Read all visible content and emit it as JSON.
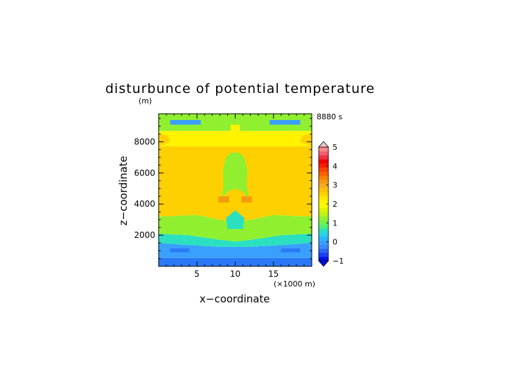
{
  "chart_data": {
    "type": "heatmap",
    "title": "disturbunce of potential temperature",
    "yunit": "(m)",
    "time_label": "8880 s",
    "xlabel": "x−coordinate",
    "ylabel": "z−coordinate",
    "xunit": "(×1000 m)",
    "xlim": [
      0,
      20
    ],
    "ylim": [
      0,
      9800
    ],
    "xticks": [
      5,
      10,
      15
    ],
    "yticks": [
      2000,
      4000,
      6000,
      8000
    ],
    "grid": false,
    "colorbar": {
      "placement": "right",
      "min": -1,
      "max": 5,
      "step": 0.25,
      "tick_values": [
        5,
        4,
        3,
        2,
        1,
        0,
        -1
      ],
      "tick_labels": [
        "5",
        "4",
        "3",
        "2",
        "1",
        "0",
        "−1"
      ],
      "colors": [
        "#0010e8",
        "#1a3ef5",
        "#2a66fb",
        "#3a8cff",
        "#3aa0ff",
        "#2ab4ff",
        "#2ad0e8",
        "#2ae0c0",
        "#50f070",
        "#70f050",
        "#90f030",
        "#b8f020",
        "#e0f000",
        "#f8f800",
        "#fff300",
        "#ffe800",
        "#ffd000",
        "#ffc000",
        "#f8ac20",
        "#f59b10",
        "#f88000",
        "#f86000",
        "#f84000",
        "#f82000",
        "#f00000",
        "#f03040",
        "#f46070",
        "#f88888"
      ]
    },
    "regions": [
      {
        "value": -0.6,
        "color": "#2a7af8",
        "desc": "lowest layer",
        "polygon": [
          [
            0,
            0
          ],
          [
            20,
            0
          ],
          [
            20,
            550
          ],
          [
            0,
            550
          ]
        ]
      },
      {
        "value": -0.3,
        "color": "#3aa0ff",
        "desc": "lower stable layer",
        "polygon": [
          [
            0,
            550
          ],
          [
            20,
            550
          ],
          [
            20,
            1500
          ],
          [
            17,
            1400
          ],
          [
            12,
            1250
          ],
          [
            10,
            1250
          ],
          [
            8,
            1250
          ],
          [
            3,
            1400
          ],
          [
            0,
            1500
          ]
        ]
      },
      {
        "value": 0.6,
        "color": "#2ae0c0",
        "desc": "transition layer",
        "polygon": [
          [
            0,
            1500
          ],
          [
            3,
            1400
          ],
          [
            8,
            1250
          ],
          [
            10,
            1250
          ],
          [
            12,
            1250
          ],
          [
            17,
            1400
          ],
          [
            20,
            1500
          ],
          [
            20,
            2100
          ],
          [
            16,
            2000
          ],
          [
            12,
            1700
          ],
          [
            10,
            1600
          ],
          [
            8,
            1700
          ],
          [
            4,
            2000
          ],
          [
            0,
            2100
          ]
        ]
      },
      {
        "value": 1.3,
        "color": "#90f030",
        "desc": "lower mixed layer",
        "polygon": [
          [
            0,
            2100
          ],
          [
            4,
            2000
          ],
          [
            8,
            1700
          ],
          [
            10,
            1600
          ],
          [
            12,
            1700
          ],
          [
            16,
            2000
          ],
          [
            20,
            2100
          ],
          [
            20,
            3200
          ],
          [
            15,
            3300
          ],
          [
            12,
            3000
          ],
          [
            10,
            2800
          ],
          [
            8,
            3000
          ],
          [
            5,
            3300
          ],
          [
            0,
            3200
          ]
        ]
      },
      {
        "value": 2.2,
        "color": "#ffd000",
        "desc": "main warm layer",
        "polygon": [
          [
            0,
            3200
          ],
          [
            5,
            3300
          ],
          [
            8,
            3000
          ],
          [
            10,
            2800
          ],
          [
            12,
            3000
          ],
          [
            15,
            3300
          ],
          [
            20,
            3200
          ],
          [
            20,
            7700
          ],
          [
            0,
            7700
          ]
        ]
      },
      {
        "value": 1.4,
        "color": "#90f030",
        "desc": "central plume",
        "polygon": [
          [
            8.2,
            4300
          ],
          [
            8.5,
            5200
          ],
          [
            8.4,
            6200
          ],
          [
            8.8,
            7000
          ],
          [
            9.5,
            7300
          ],
          [
            10.5,
            7300
          ],
          [
            11.2,
            7000
          ],
          [
            11.6,
            6200
          ],
          [
            11.5,
            5200
          ],
          [
            11.8,
            4300
          ],
          [
            11,
            4800
          ],
          [
            10,
            5000
          ],
          [
            9,
            4800
          ]
        ]
      },
      {
        "value": 1.8,
        "color": "#fff300",
        "desc": "upper layer",
        "polygon": [
          [
            0,
            7700
          ],
          [
            20,
            7700
          ],
          [
            20,
            8700
          ],
          [
            0,
            8700
          ]
        ]
      },
      {
        "value": 1.3,
        "color": "#90f030",
        "desc": "top layer",
        "polygon": [
          [
            0,
            8700
          ],
          [
            20,
            8700
          ],
          [
            20,
            9800
          ],
          [
            0,
            9800
          ]
        ]
      },
      {
        "value": 2.5,
        "color": "#ffd000",
        "desc": "left warm pocket",
        "polygon": [
          [
            0,
            7700
          ],
          [
            1.5,
            8000
          ],
          [
            1.2,
            8400
          ],
          [
            0,
            8500
          ]
        ]
      },
      {
        "value": 2.5,
        "color": "#ffd000",
        "desc": "right warm pocket",
        "polygon": [
          [
            20,
            7700
          ],
          [
            18.5,
            8000
          ],
          [
            18.8,
            8400
          ],
          [
            20,
            8500
          ]
        ]
      },
      {
        "value": -0.5,
        "color": "#3aa0ff",
        "desc": "left top cold cell",
        "polygon": [
          [
            1.5,
            9100
          ],
          [
            5.5,
            9100
          ],
          [
            5.5,
            9400
          ],
          [
            1.5,
            9400
          ]
        ]
      },
      {
        "value": -0.5,
        "color": "#3aa0ff",
        "desc": "right top cold cell",
        "polygon": [
          [
            14.5,
            9100
          ],
          [
            18.5,
            9100
          ],
          [
            18.5,
            9400
          ],
          [
            14.5,
            9400
          ]
        ]
      },
      {
        "value": 0.7,
        "color": "#2ae0c0",
        "desc": "center low cell",
        "polygon": [
          [
            9,
            2400
          ],
          [
            11,
            2400
          ],
          [
            11.2,
            3100
          ],
          [
            10,
            3600
          ],
          [
            8.8,
            3100
          ]
        ]
      },
      {
        "value": 2.8,
        "color": "#f59b10",
        "desc": "left center warm blob",
        "polygon": [
          [
            7.8,
            4100
          ],
          [
            9.2,
            4100
          ],
          [
            9.2,
            4500
          ],
          [
            7.8,
            4500
          ]
        ]
      },
      {
        "value": 2.8,
        "color": "#f59b10",
        "desc": "right center warm blob",
        "polygon": [
          [
            10.8,
            4100
          ],
          [
            12.2,
            4100
          ],
          [
            12.2,
            4500
          ],
          [
            10.8,
            4500
          ]
        ]
      },
      {
        "value": 1.8,
        "color": "#fff300",
        "desc": "upper center column",
        "polygon": [
          [
            9.4,
            8000
          ],
          [
            10.6,
            8000
          ],
          [
            10.6,
            9100
          ],
          [
            9.4,
            9100
          ]
        ]
      },
      {
        "value": -0.6,
        "color": "#2a7af8",
        "desc": "left lower cold streak",
        "polygon": [
          [
            1.5,
            900
          ],
          [
            4,
            900
          ],
          [
            4,
            1150
          ],
          [
            1.5,
            1150
          ]
        ]
      },
      {
        "value": -0.6,
        "color": "#2a7af8",
        "desc": "right lower cold streak",
        "polygon": [
          [
            16,
            900
          ],
          [
            18.5,
            900
          ],
          [
            18.5,
            1150
          ],
          [
            16,
            1150
          ]
        ]
      }
    ]
  }
}
